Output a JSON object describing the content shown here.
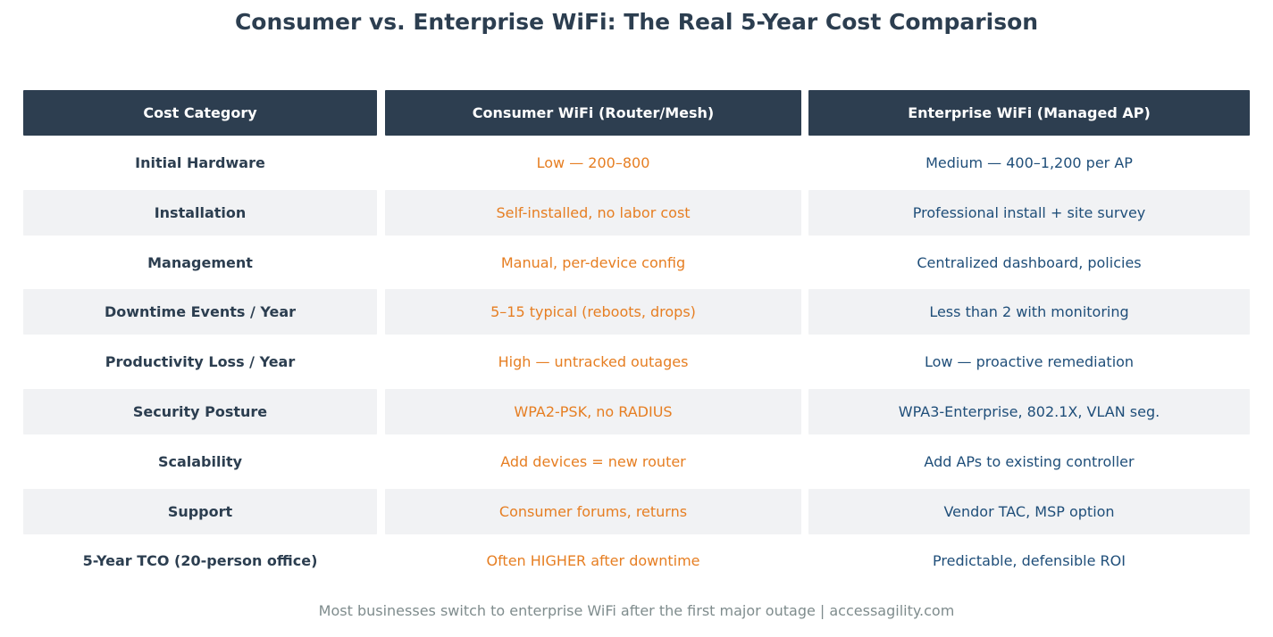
{
  "chart_data": {
    "type": "table",
    "title": "Consumer vs. Enterprise WiFi: The Real 5-Year Cost Comparison",
    "columns": [
      "Cost Category",
      "Consumer WiFi (Router/Mesh)",
      "Enterprise WiFi (Managed AP)"
    ],
    "rows": [
      [
        "Initial Hardware",
        "Low — 200–800",
        "Medium — 400–1,200 per AP"
      ],
      [
        "Installation",
        "Self-installed, no labor cost",
        "Professional install + site survey"
      ],
      [
        "Management",
        "Manual, per-device config",
        "Centralized dashboard, policies"
      ],
      [
        "Downtime Events / Year",
        "5–15 typical (reboots, drops)",
        "Less than 2 with monitoring"
      ],
      [
        "Productivity Loss / Year",
        "High — untracked outages",
        "Low — proactive remediation"
      ],
      [
        "Security Posture",
        "WPA2-PSK, no RADIUS",
        "WPA3-Enterprise, 802.1X, VLAN seg."
      ],
      [
        "Scalability",
        "Add devices = new router",
        "Add APs to existing controller"
      ],
      [
        "Support",
        "Consumer forums, returns",
        "Vendor TAC, MSP option"
      ],
      [
        "5-Year TCO (20-person office)",
        "Often HIGHER after downtime",
        "Predictable, defensible ROI"
      ]
    ],
    "footer": "Most businesses switch to enterprise WiFi after the first major outage  |  accessagility.com",
    "colors": {
      "header_bg": "#2d3e50",
      "header_text": "#ffffff",
      "category_text": "#2c3e50",
      "consumer_text": "#e67e22",
      "enterprise_text": "#1f4e79",
      "row_shade": "#f1f2f4",
      "footer_text": "#7f8c8d"
    }
  }
}
